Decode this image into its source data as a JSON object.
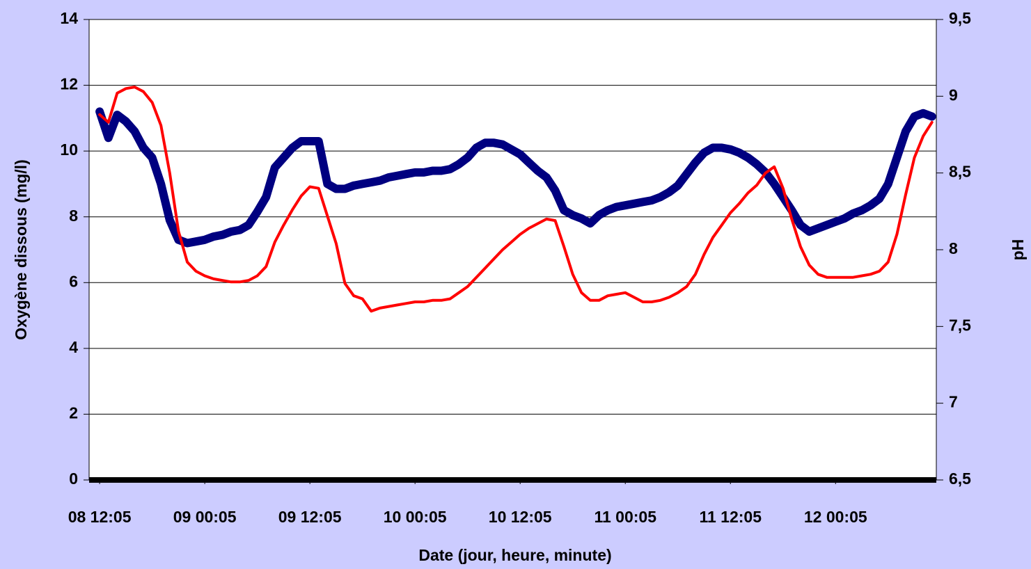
{
  "chart_data": {
    "type": "line",
    "xlabel": "Date (jour, heure, minute)",
    "ylabel": "Oxygène dissous (mg/l)",
    "y2label": "pH",
    "x": [
      0,
      1,
      2,
      3,
      4,
      5,
      6,
      7,
      8,
      9,
      10,
      11,
      12,
      13,
      14,
      15,
      16,
      17,
      18,
      19,
      20,
      21,
      22,
      23,
      24,
      25,
      26,
      27,
      28,
      29,
      30,
      31,
      32,
      33,
      34,
      35,
      36,
      37,
      38,
      39,
      40,
      41,
      42,
      43,
      44,
      45,
      46,
      47,
      48,
      49,
      50,
      51,
      52,
      53,
      54,
      55,
      56,
      57,
      58,
      59,
      60,
      61,
      62,
      63,
      64,
      65,
      66,
      67,
      68,
      69,
      70,
      71,
      72,
      73,
      74,
      75,
      76,
      77,
      78,
      79,
      80,
      81,
      82,
      83,
      84,
      85,
      86,
      87,
      88,
      89,
      90,
      91,
      92,
      93,
      94,
      95
    ],
    "xlim": [
      -1.2,
      95.5
    ],
    "xticks": [
      {
        "value": 0,
        "label": "08 12:05"
      },
      {
        "value": 12,
        "label": "09 00:05"
      },
      {
        "value": 24,
        "label": "09 12:05"
      },
      {
        "value": 36,
        "label": "10 00:05"
      },
      {
        "value": 48,
        "label": "10 12:05"
      },
      {
        "value": 60,
        "label": "11 00:05"
      },
      {
        "value": 72,
        "label": "11 12:05"
      },
      {
        "value": 84,
        "label": "12 00:05"
      }
    ],
    "ylim": [
      0,
      14
    ],
    "yticks": [
      0,
      2,
      4,
      6,
      8,
      10,
      12,
      14
    ],
    "y2lim": [
      6.5,
      9.5
    ],
    "y2ticks": [
      {
        "value": 6.5,
        "label": "6,5"
      },
      7,
      {
        "value": 7.5,
        "label": "7,5"
      },
      8,
      {
        "value": 8.5,
        "label": "8,5"
      },
      9,
      {
        "value": 9.5,
        "label": "9,5"
      }
    ],
    "grid": true,
    "series": [
      {
        "color": "#000080",
        "axis": "y",
        "values": [
          11.2,
          10.4,
          11.1,
          10.9,
          10.6,
          10.1,
          9.8,
          9.0,
          7.9,
          7.3,
          7.2,
          7.25,
          7.3,
          7.4,
          7.45,
          7.55,
          7.6,
          7.75,
          8.15,
          8.6,
          9.5,
          9.8,
          10.1,
          10.3,
          10.3,
          10.3,
          9.0,
          8.85,
          8.85,
          8.95,
          9.0,
          9.05,
          9.1,
          9.2,
          9.25,
          9.3,
          9.35,
          9.35,
          9.4,
          9.4,
          9.45,
          9.6,
          9.8,
          10.1,
          10.25,
          10.25,
          10.2,
          10.05,
          9.9,
          9.65,
          9.4,
          9.2,
          8.8,
          8.2,
          8.05,
          7.95,
          7.8,
          8.05,
          8.2,
          8.3,
          8.35,
          8.4,
          8.45,
          8.5,
          8.6,
          8.75,
          8.95,
          9.3,
          9.65,
          9.95,
          10.1,
          10.1,
          10.05,
          9.95,
          9.8,
          9.6,
          9.35,
          9.0,
          8.6,
          8.2,
          7.75,
          7.55,
          7.65,
          7.75,
          7.85,
          7.95,
          8.1,
          8.2,
          8.35,
          8.55,
          9.0,
          9.8,
          10.6,
          11.05,
          11.15,
          11.05
        ]
      },
      {
        "color": "#ff0000",
        "axis": "y2",
        "values": [
          8.88,
          8.83,
          9.02,
          9.05,
          9.06,
          9.03,
          8.96,
          8.81,
          8.5,
          8.12,
          7.92,
          7.86,
          7.83,
          7.81,
          7.8,
          7.79,
          7.79,
          7.8,
          7.83,
          7.89,
          8.05,
          8.16,
          8.26,
          8.35,
          8.41,
          8.4,
          8.22,
          8.04,
          7.78,
          7.7,
          7.68,
          7.6,
          7.62,
          7.63,
          7.64,
          7.65,
          7.66,
          7.66,
          7.67,
          7.67,
          7.68,
          7.72,
          7.76,
          7.82,
          7.88,
          7.94,
          8.0,
          8.05,
          8.1,
          8.14,
          8.17,
          8.2,
          8.19,
          8.02,
          7.84,
          7.72,
          7.67,
          7.67,
          7.7,
          7.71,
          7.72,
          7.69,
          7.66,
          7.66,
          7.67,
          7.69,
          7.72,
          7.76,
          7.84,
          7.97,
          8.08,
          8.16,
          8.24,
          8.3,
          8.37,
          8.42,
          8.5,
          8.54,
          8.4,
          8.2,
          8.02,
          7.9,
          7.84,
          7.82,
          7.82,
          7.82,
          7.82,
          7.83,
          7.84,
          7.86,
          7.92,
          8.1,
          8.36,
          8.6,
          8.74,
          8.83
        ]
      }
    ]
  }
}
